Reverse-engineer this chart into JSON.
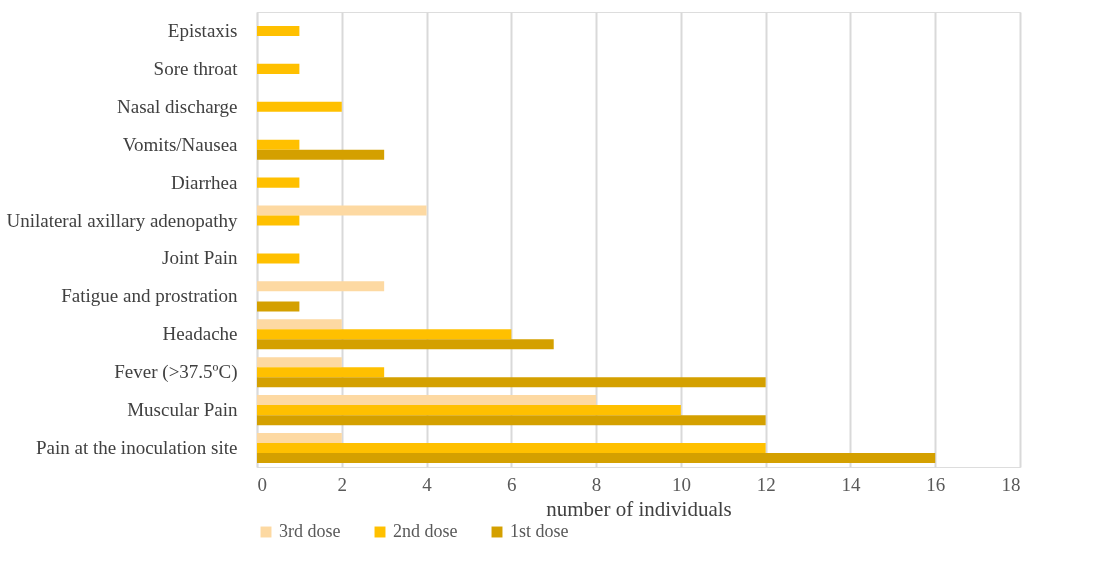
{
  "chart_data": {
    "type": "bar",
    "orientation": "horizontal",
    "xlabel": "number of individuals",
    "categories": [
      "Epistaxis",
      "Sore throat",
      "Nasal discharge",
      "Vomits/Nausea",
      "Diarrhea",
      "Unilateral axillary adenopathy",
      "Joint Pain",
      "Fatigue and prostration",
      "Headache",
      "Fever (>37.5ºC)",
      "Muscular Pain",
      "Pain at the inoculation site"
    ],
    "series": [
      {
        "name": "3rd dose",
        "color": "#fdd9a2",
        "values": [
          null,
          null,
          null,
          null,
          null,
          4,
          null,
          3,
          2,
          2,
          8,
          2
        ]
      },
      {
        "name": "2nd dose",
        "color": "#ffc000",
        "values": [
          1,
          1,
          2,
          1,
          1,
          1,
          1,
          null,
          6,
          3,
          10,
          12
        ]
      },
      {
        "name": "1st dose",
        "color": "#d4a000",
        "values": [
          null,
          null,
          null,
          3,
          null,
          null,
          null,
          1,
          7,
          12,
          12,
          16
        ]
      }
    ],
    "xlim": [
      0,
      18
    ],
    "xticks": [
      0,
      2,
      4,
      6,
      8,
      10,
      12,
      14,
      16,
      18
    ],
    "grid": "x",
    "legend": "bottom"
  }
}
